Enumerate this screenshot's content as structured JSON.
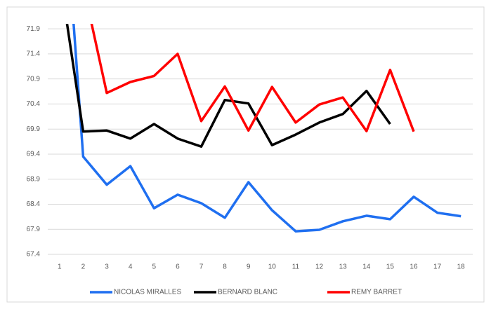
{
  "chart_data": {
    "type": "line",
    "categories": [
      1,
      2,
      3,
      4,
      5,
      6,
      7,
      8,
      9,
      10,
      11,
      12,
      13,
      14,
      15,
      16,
      17,
      18
    ],
    "series": [
      {
        "name": "NICOLAS MIRALLES",
        "color": "#1f6ff0",
        "values": [
          75.9,
          69.35,
          68.79,
          69.16,
          68.32,
          68.59,
          68.42,
          68.13,
          68.84,
          68.28,
          67.86,
          67.89,
          68.06,
          68.17,
          68.1,
          68.55,
          68.23,
          68.16
        ]
      },
      {
        "name": "BERNARD BLANC",
        "color": "#000000",
        "values": [
          73.0,
          69.85,
          69.87,
          69.71,
          70.0,
          69.71,
          69.55,
          70.48,
          70.41,
          69.58,
          69.79,
          70.03,
          70.2,
          70.66,
          70.0,
          null,
          null,
          null
        ]
      },
      {
        "name": "REMY BARRET",
        "color": "#ff0000",
        "values": [
          null,
          72.77,
          70.62,
          70.84,
          70.96,
          71.4,
          70.06,
          70.75,
          69.87,
          70.74,
          70.03,
          70.39,
          70.53,
          69.86,
          71.08,
          69.85,
          null,
          null
        ]
      }
    ],
    "ylim": [
      67.4,
      72.0
    ],
    "yticks": [
      67.4,
      67.9,
      68.4,
      68.9,
      69.4,
      69.9,
      70.4,
      70.9,
      71.4,
      71.9
    ],
    "grid": true,
    "legend": "bottom"
  }
}
